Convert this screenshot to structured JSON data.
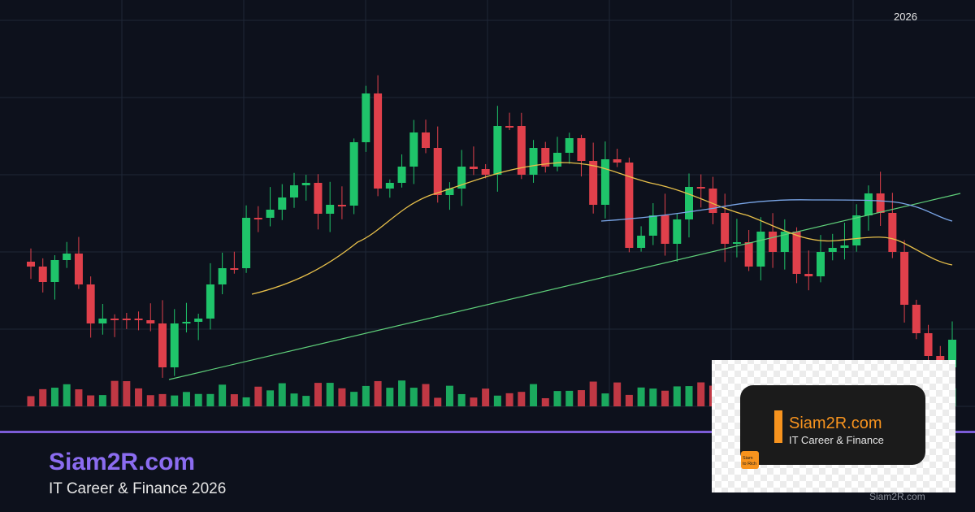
{
  "header": {
    "year": "2026"
  },
  "brand": {
    "title": "Siam2R.com",
    "subtitle": "IT Career & Finance 2026"
  },
  "logo": {
    "name": "Siam2R.com",
    "tagline": "IT Career & Finance",
    "badge_line1": "Siam",
    "badge_line2": "to Rich"
  },
  "watermark": "Siam2R.com"
}
